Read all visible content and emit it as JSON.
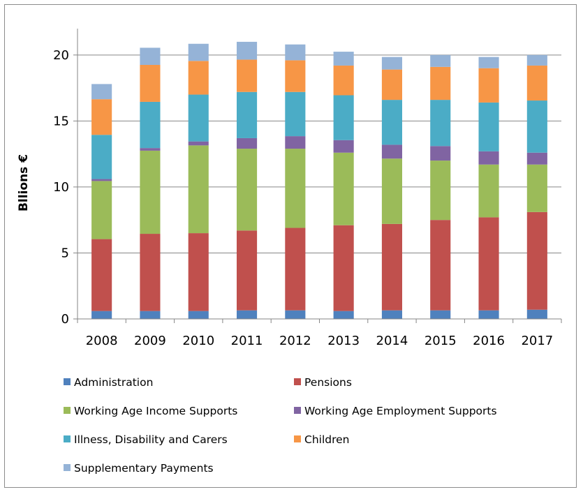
{
  "chart_data": {
    "type": "bar",
    "stacked": true,
    "title": "",
    "xlabel": "",
    "ylabel": "Bllions €",
    "ylim": [
      0,
      22
    ],
    "yticks": [
      0,
      5,
      10,
      15,
      20
    ],
    "grid": true,
    "legend_position": "bottom",
    "categories": [
      "2008",
      "2009",
      "2010",
      "2011",
      "2012",
      "2013",
      "2014",
      "2015",
      "2016",
      "2017"
    ],
    "series": [
      {
        "name": "Administration",
        "color": "#4f81bd",
        "values": [
          0.6,
          0.6,
          0.6,
          0.65,
          0.65,
          0.6,
          0.65,
          0.65,
          0.65,
          0.7
        ]
      },
      {
        "name": "Pensions",
        "color": "#c0504d",
        "values": [
          5.45,
          5.85,
          5.9,
          6.05,
          6.25,
          6.5,
          6.55,
          6.85,
          7.05,
          7.4
        ]
      },
      {
        "name": "Working Age Income Supports",
        "color": "#9bbb59",
        "values": [
          4.4,
          6.3,
          6.65,
          6.2,
          6.0,
          5.5,
          4.95,
          4.5,
          4.0,
          3.6
        ]
      },
      {
        "name": "Working Age Employment Supports",
        "color": "#8064a2",
        "values": [
          0.15,
          0.2,
          0.3,
          0.8,
          0.95,
          0.95,
          1.05,
          1.1,
          1.0,
          0.9
        ]
      },
      {
        "name": "Illness, Disability and Carers",
        "color": "#4bacc6",
        "values": [
          3.35,
          3.5,
          3.55,
          3.5,
          3.35,
          3.4,
          3.4,
          3.5,
          3.7,
          3.95
        ]
      },
      {
        "name": "Children",
        "color": "#f79646",
        "values": [
          2.7,
          2.8,
          2.55,
          2.45,
          2.4,
          2.25,
          2.3,
          2.5,
          2.6,
          2.65
        ]
      },
      {
        "name": "Supplementary Payments",
        "color": "#95b3d7",
        "values": [
          1.15,
          1.3,
          1.3,
          1.35,
          1.2,
          1.05,
          0.95,
          0.9,
          0.85,
          0.8
        ]
      }
    ]
  }
}
